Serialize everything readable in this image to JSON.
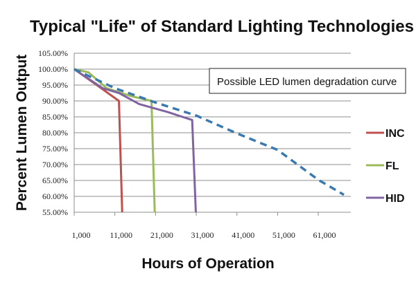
{
  "chart_data": {
    "type": "line",
    "title": "Typical \"Life\" of Standard Lighting Technologies",
    "xlabel": "Hours of Operation",
    "ylabel": "Percent Lumen Output",
    "xlim": [
      1000,
      69000
    ],
    "ylim": [
      55,
      105
    ],
    "x_ticks": [
      "1,000",
      "11,000",
      "21,000",
      "31,000",
      "41,000",
      "51,000",
      "61,000"
    ],
    "x_tick_values": [
      1000,
      11000,
      21000,
      31000,
      41000,
      51000,
      61000
    ],
    "y_ticks": [
      "105.00%",
      "100.00%",
      "95.00%",
      "90.00%",
      "85.00%",
      "80.00%",
      "75.00%",
      "70.00%",
      "65.00%",
      "60.00%",
      "55.00%"
    ],
    "y_tick_values": [
      105,
      100,
      95,
      90,
      85,
      80,
      75,
      70,
      65,
      60,
      55
    ],
    "grid": "horizontal",
    "legend_position": "right",
    "series": [
      {
        "name": "INC",
        "color": "#c0504d",
        "dashed": false,
        "points": [
          [
            1000,
            100
          ],
          [
            6000,
            95.5
          ],
          [
            12000,
            90
          ],
          [
            12800,
            55
          ]
        ]
      },
      {
        "name": "FL",
        "color": "#9bbb59",
        "dashed": false,
        "points": [
          [
            1000,
            100
          ],
          [
            4500,
            99
          ],
          [
            9000,
            94
          ],
          [
            15000,
            91.5
          ],
          [
            20000,
            90
          ],
          [
            20800,
            55
          ]
        ]
      },
      {
        "name": "HID",
        "color": "#8064a2",
        "dashed": false,
        "points": [
          [
            1000,
            100
          ],
          [
            8000,
            94
          ],
          [
            12000,
            92.5
          ],
          [
            17000,
            89
          ],
          [
            24000,
            86.5
          ],
          [
            30000,
            84
          ],
          [
            30900,
            55
          ]
        ]
      },
      {
        "color": "#3a7ab0",
        "dashed": true,
        "points": [
          [
            1000,
            100
          ],
          [
            11000,
            94
          ],
          [
            21000,
            89.5
          ],
          [
            31000,
            85.4
          ],
          [
            41000,
            79.8
          ],
          [
            51000,
            74.6
          ],
          [
            61000,
            65.2
          ],
          [
            67300,
            60.5
          ]
        ]
      }
    ],
    "annotation": "Possible LED lumen degradation curve"
  }
}
